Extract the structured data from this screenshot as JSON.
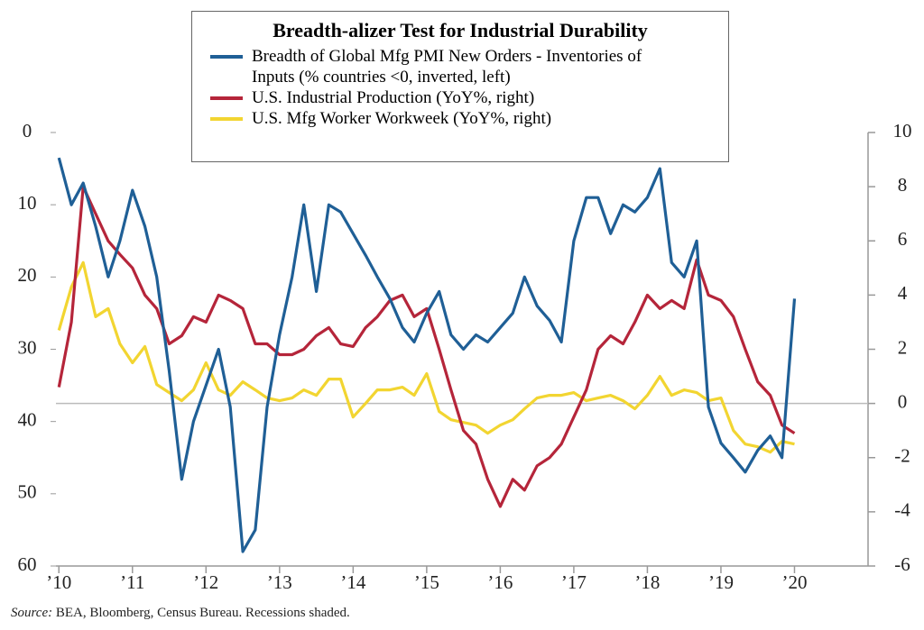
{
  "chart_data": {
    "type": "line",
    "title": "Breadth-alizer Test for Industrial Durability",
    "source_label": "Source:",
    "source": "BEA, Bloomberg, Census Bureau. Recessions shaded.",
    "x": [
      2010,
      2010.17,
      2010.33,
      2010.5,
      2010.67,
      2010.83,
      2011,
      2011.17,
      2011.33,
      2011.5,
      2011.67,
      2011.83,
      2012,
      2012.17,
      2012.33,
      2012.5,
      2012.67,
      2012.83,
      2013,
      2013.17,
      2013.33,
      2013.5,
      2013.67,
      2013.83,
      2014,
      2014.17,
      2014.33,
      2014.5,
      2014.67,
      2014.83,
      2015,
      2015.17,
      2015.33,
      2015.5,
      2015.67,
      2015.83,
      2016,
      2016.17,
      2016.33,
      2016.5,
      2016.67,
      2016.83,
      2017,
      2017.17,
      2017.33,
      2017.5,
      2017.67,
      2017.83,
      2018,
      2018.17,
      2018.33,
      2018.5,
      2018.67,
      2018.83,
      2019,
      2019.17,
      2019.33,
      2019.5,
      2019.67,
      2019.83,
      2020
    ],
    "xlim": [
      2009.96,
      2021
    ],
    "xticks": [
      {
        "value": 2010,
        "label": "’10"
      },
      {
        "value": 2011,
        "label": "’11"
      },
      {
        "value": 2012,
        "label": "’12"
      },
      {
        "value": 2013,
        "label": "’13"
      },
      {
        "value": 2014,
        "label": "’14"
      },
      {
        "value": 2015,
        "label": "’15"
      },
      {
        "value": 2016,
        "label": "’16"
      },
      {
        "value": 2017,
        "label": "’17"
      },
      {
        "value": 2018,
        "label": "’18"
      },
      {
        "value": 2019,
        "label": "’19"
      },
      {
        "value": 2020,
        "label": "’20"
      }
    ],
    "ylim": [
      60,
      0
    ],
    "yticks": [
      0,
      10,
      20,
      30,
      40,
      50,
      60
    ],
    "y_inverted": true,
    "y2lim": [
      -6,
      10
    ],
    "y2ticks": [
      -6,
      -4,
      -2,
      0,
      2,
      4,
      6,
      8,
      10
    ],
    "zero_line": true,
    "series": [
      {
        "name": "Breadth of Global Mfg PMI New Orders - Inventories of Inputs (% countries <0, inverted, left)",
        "color": "#1f5f96",
        "values": [
          3.5,
          10,
          7,
          13,
          20,
          15,
          8,
          13,
          20,
          33,
          48,
          40,
          35,
          30,
          38,
          58,
          55,
          38,
          28,
          20,
          10,
          22,
          10,
          11,
          14,
          17,
          20,
          23,
          27,
          29,
          25,
          22,
          28,
          30,
          28,
          29,
          27,
          25,
          20,
          24,
          26,
          29,
          15,
          9,
          9,
          14,
          10,
          11,
          9,
          5,
          18,
          20,
          15,
          38,
          43,
          45,
          47,
          44,
          42,
          45,
          23
        ]
      },
      {
        "name": "U.S. Industrial Production (YoY%, right)",
        "color": "#b5253a",
        "axis": "y2",
        "values": [
          0.6,
          3,
          8,
          7,
          6,
          5.5,
          5,
          4,
          3.5,
          2.2,
          2.5,
          3.2,
          3,
          4,
          3.8,
          3.5,
          2.2,
          2.2,
          1.8,
          1.8,
          2,
          2.5,
          2.8,
          2.2,
          2.1,
          2.8,
          3.2,
          3.8,
          4,
          3.2,
          3.5,
          2,
          0.5,
          -1,
          -1.5,
          -2.8,
          -3.8,
          -2.8,
          -3.2,
          -2.3,
          -2,
          -1.5,
          -0.5,
          0.5,
          2,
          2.5,
          2.2,
          3,
          4,
          3.5,
          3.8,
          3.5,
          5.3,
          4,
          3.8,
          3.2,
          2,
          0.8,
          0.3,
          -0.8,
          -1.1
        ]
      },
      {
        "name": "U.S. Mfg Worker Workweek (YoY%, right)",
        "color": "#f2d531",
        "axis": "y2",
        "values": [
          2.7,
          4.3,
          5.2,
          3.2,
          3.5,
          2.2,
          1.5,
          2.1,
          0.7,
          0.4,
          0.1,
          0.5,
          1.5,
          0.5,
          0.3,
          0.8,
          0.5,
          0.2,
          0.1,
          0.2,
          0.5,
          0.3,
          0.9,
          0.9,
          -0.5,
          0,
          0.5,
          0.5,
          0.6,
          0.3,
          1.1,
          -0.3,
          -0.6,
          -0.7,
          -0.8,
          -1.1,
          -0.8,
          -0.6,
          -0.2,
          0.2,
          0.3,
          0.3,
          0.4,
          0.1,
          0.2,
          0.3,
          0.1,
          -0.2,
          0.3,
          1,
          0.3,
          0.5,
          0.4,
          0.1,
          0.2,
          -1,
          -1.5,
          -1.6,
          -1.8,
          -1.4,
          -1.5
        ]
      }
    ]
  }
}
